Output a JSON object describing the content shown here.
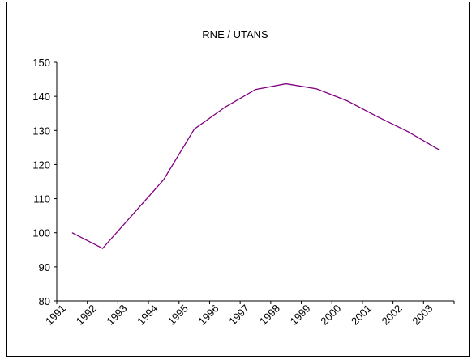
{
  "chart_data": {
    "type": "line",
    "title": "RNE / UTANS",
    "categories": [
      "1991",
      "1992",
      "1993",
      "1994",
      "1995",
      "1996",
      "1997",
      "1998",
      "1999",
      "2000",
      "2001",
      "2002",
      "2003"
    ],
    "series": [
      {
        "name": "RNE / UTANS",
        "color": "#800080",
        "values": [
          100,
          95.4,
          105.5,
          115.6,
          130.4,
          136.8,
          142,
          143.7,
          142.2,
          138.7,
          134,
          129.6,
          124.4
        ]
      }
    ],
    "ylim": [
      80,
      150
    ],
    "yticks": [
      80,
      90,
      100,
      110,
      120,
      130,
      140,
      150
    ],
    "grid": false
  }
}
